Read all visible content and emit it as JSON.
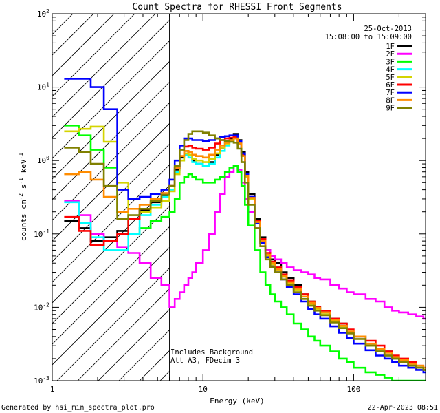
{
  "chart_data": {
    "type": "line",
    "title": "Count Spectra for RHESSI Front Segments",
    "xlabel": "Energy (keV)",
    "ylabel": "counts cm-2 s-1 keV-1",
    "ylabel_parts": [
      "counts cm",
      "-2",
      " s",
      "-1",
      " keV",
      "-1"
    ],
    "xscale": "log",
    "yscale": "log",
    "xlim": [
      1,
      300
    ],
    "ylim": [
      0.001,
      100
    ],
    "x_ticks": [
      {
        "value": 1,
        "label": "1"
      },
      {
        "value": 10,
        "label": "10"
      },
      {
        "value": 100,
        "label": "100"
      }
    ],
    "y_ticks": [
      {
        "value": 100,
        "base": "10",
        "exp": "2"
      },
      {
        "value": 10,
        "base": "10",
        "exp": "1"
      },
      {
        "value": 1,
        "base": "10",
        "exp": "0"
      },
      {
        "value": 0.1,
        "base": "10",
        "exp": "-1"
      },
      {
        "value": 0.01,
        "base": "10",
        "exp": "-2"
      },
      {
        "value": 0.001,
        "base": "10",
        "exp": "-3"
      }
    ],
    "date": "25-Oct-2013",
    "time_range": "15:08:00 to 15:09:00",
    "hatched_region_upper_energy": 6,
    "annotations": [
      "Includes Background",
      "Att A3, FDecim 3"
    ],
    "footer_left": "Generated by hsi_min_spectra_plot.pro",
    "footer_right": "22-Apr-2023 08:51",
    "series": [
      {
        "name": "1F",
        "color": "#000000",
        "x": [
          1.2,
          1.5,
          1.8,
          2.2,
          2.7,
          3.2,
          3.8,
          4.5,
          5.3,
          6.0,
          6.5,
          7.0,
          7.5,
          8.0,
          8.5,
          9.0,
          10.0,
          11.0,
          12.0,
          13.0,
          14.0,
          15.0,
          16.0,
          17.0,
          18.0,
          19.0,
          20.0,
          22.0,
          24.0,
          26.0,
          28.0,
          30.0,
          33.0,
          36.0,
          40.0,
          45.0,
          50.0,
          55.0,
          60.0,
          70.0,
          80.0,
          90.0,
          100.0,
          120.0,
          140.0,
          160.0,
          180.0,
          200.0,
          230.0,
          260.0,
          290.0
        ],
        "y": [
          0.15,
          0.12,
          0.08,
          0.09,
          0.11,
          0.16,
          0.21,
          0.27,
          0.33,
          0.45,
          0.75,
          1.1,
          1.35,
          1.2,
          1.0,
          0.9,
          0.85,
          0.95,
          1.2,
          1.5,
          1.8,
          2.0,
          2.3,
          1.9,
          1.3,
          0.7,
          0.35,
          0.16,
          0.09,
          0.06,
          0.045,
          0.04,
          0.03,
          0.025,
          0.02,
          0.015,
          0.012,
          0.01,
          0.009,
          0.007,
          0.006,
          0.0045,
          0.004,
          0.003,
          0.0025,
          0.0025,
          0.002,
          0.0018,
          0.0016,
          0.0015,
          0.0014
        ]
      },
      {
        "name": "2F",
        "color": "#ff00ff",
        "x": [
          1.2,
          1.5,
          1.8,
          2.2,
          2.7,
          3.2,
          3.8,
          4.5,
          5.3,
          6.0,
          6.5,
          7.0,
          7.5,
          8.0,
          8.5,
          9.0,
          10.0,
          11.0,
          12.0,
          13.0,
          14.0,
          15.0,
          16.0,
          17.0,
          18.0,
          19.0,
          20.0,
          22.0,
          24.0,
          26.0,
          28.0,
          30.0,
          33.0,
          36.0,
          40.0,
          45.0,
          50.0,
          55.0,
          60.0,
          70.0,
          80.0,
          90.0,
          100.0,
          120.0,
          140.0,
          160.0,
          180.0,
          200.0,
          230.0,
          260.0,
          290.0
        ],
        "y": [
          0.28,
          0.18,
          0.1,
          0.08,
          0.065,
          0.055,
          0.04,
          0.025,
          0.02,
          0.01,
          0.013,
          0.016,
          0.02,
          0.025,
          0.03,
          0.04,
          0.06,
          0.1,
          0.2,
          0.35,
          0.6,
          0.7,
          0.85,
          0.75,
          0.5,
          0.3,
          0.2,
          0.12,
          0.08,
          0.06,
          0.05,
          0.045,
          0.04,
          0.035,
          0.032,
          0.03,
          0.028,
          0.025,
          0.024,
          0.02,
          0.018,
          0.016,
          0.015,
          0.013,
          0.012,
          0.01,
          0.009,
          0.0085,
          0.008,
          0.0075,
          0.007
        ]
      },
      {
        "name": "3F",
        "color": "#00ff00",
        "x": [
          1.2,
          1.5,
          1.8,
          2.2,
          2.7,
          3.2,
          3.8,
          4.5,
          5.3,
          6.0,
          6.5,
          7.0,
          7.5,
          8.0,
          8.5,
          9.0,
          10.0,
          11.0,
          12.0,
          13.0,
          14.0,
          15.0,
          16.0,
          17.0,
          18.0,
          19.0,
          20.0,
          22.0,
          24.0,
          26.0,
          28.0,
          30.0,
          33.0,
          36.0,
          40.0,
          45.0,
          50.0,
          55.0,
          60.0,
          70.0,
          80.0,
          90.0,
          100.0,
          120.0,
          140.0,
          160.0,
          180.0,
          200.0,
          230.0,
          260.0,
          290.0
        ],
        "y": [
          3.0,
          2.2,
          1.4,
          0.8,
          0.2,
          0.1,
          0.12,
          0.15,
          0.17,
          0.2,
          0.3,
          0.5,
          0.6,
          0.65,
          0.6,
          0.55,
          0.5,
          0.5,
          0.55,
          0.6,
          0.7,
          0.8,
          0.85,
          0.7,
          0.45,
          0.25,
          0.13,
          0.06,
          0.03,
          0.02,
          0.015,
          0.012,
          0.01,
          0.008,
          0.006,
          0.005,
          0.004,
          0.0035,
          0.003,
          0.0025,
          0.002,
          0.0018,
          0.0015,
          0.0013,
          0.0012,
          0.0011,
          0.001,
          0.001,
          0.001,
          0.001,
          0.001
        ]
      },
      {
        "name": "4F",
        "color": "#00ffff",
        "x": [
          1.2,
          1.5,
          1.8,
          2.2,
          2.7,
          3.2,
          3.8,
          4.5,
          5.3,
          6.0,
          6.5,
          7.0,
          7.5,
          8.0,
          8.5,
          9.0,
          10.0,
          11.0,
          12.0,
          13.0,
          14.0,
          15.0,
          16.0,
          17.0,
          18.0,
          19.0,
          20.0,
          22.0,
          24.0,
          26.0,
          28.0,
          30.0,
          33.0,
          36.0,
          40.0,
          45.0,
          50.0,
          55.0,
          60.0,
          70.0,
          80.0,
          90.0,
          100.0,
          120.0,
          140.0,
          160.0,
          180.0,
          200.0,
          230.0,
          260.0,
          290.0
        ],
        "y": [
          0.27,
          0.14,
          0.09,
          0.06,
          0.06,
          0.1,
          0.18,
          0.25,
          0.32,
          0.4,
          0.7,
          1.0,
          1.2,
          1.1,
          0.95,
          0.9,
          0.85,
          0.9,
          1.1,
          1.35,
          1.6,
          1.8,
          2.0,
          1.75,
          1.2,
          0.65,
          0.32,
          0.15,
          0.08,
          0.05,
          0.04,
          0.035,
          0.028,
          0.022,
          0.018,
          0.014,
          0.011,
          0.0095,
          0.0085,
          0.0065,
          0.0055,
          0.0045,
          0.004,
          0.003,
          0.0025,
          0.0022,
          0.002,
          0.0018,
          0.0016,
          0.0015,
          0.0014
        ]
      },
      {
        "name": "5F",
        "color": "#d4d400",
        "x": [
          1.2,
          1.5,
          1.8,
          2.2,
          2.7,
          3.2,
          3.8,
          4.5,
          5.3,
          6.0,
          6.5,
          7.0,
          7.5,
          8.0,
          8.5,
          9.0,
          10.0,
          11.0,
          12.0,
          13.0,
          14.0,
          15.0,
          16.0,
          17.0,
          18.0,
          19.0,
          20.0,
          22.0,
          24.0,
          26.0,
          28.0,
          30.0,
          33.0,
          36.0,
          40.0,
          45.0,
          50.0,
          55.0,
          60.0,
          70.0,
          80.0,
          90.0,
          100.0,
          120.0,
          140.0,
          160.0,
          180.0,
          200.0,
          230.0,
          260.0,
          290.0
        ],
        "y": [
          2.5,
          2.7,
          2.9,
          1.8,
          0.5,
          0.16,
          0.2,
          0.23,
          0.28,
          0.38,
          0.65,
          1.0,
          1.25,
          1.2,
          1.05,
          1.0,
          0.95,
          1.05,
          1.25,
          1.5,
          1.7,
          1.85,
          2.0,
          1.7,
          1.15,
          0.6,
          0.3,
          0.14,
          0.075,
          0.05,
          0.038,
          0.032,
          0.026,
          0.021,
          0.017,
          0.013,
          0.011,
          0.0095,
          0.008,
          0.0065,
          0.0055,
          0.0045,
          0.004,
          0.003,
          0.0025,
          0.0022,
          0.002,
          0.0018,
          0.0016,
          0.0015,
          0.0014
        ]
      },
      {
        "name": "6F",
        "color": "#ff0000",
        "x": [
          1.2,
          1.5,
          1.8,
          2.2,
          2.7,
          3.2,
          3.8,
          4.5,
          5.3,
          6.0,
          6.5,
          7.0,
          7.5,
          8.0,
          8.5,
          9.0,
          10.0,
          11.0,
          12.0,
          13.0,
          14.0,
          15.0,
          16.0,
          17.0,
          18.0,
          19.0,
          20.0,
          22.0,
          24.0,
          26.0,
          28.0,
          30.0,
          33.0,
          36.0,
          40.0,
          45.0,
          50.0,
          55.0,
          60.0,
          70.0,
          80.0,
          90.0,
          100.0,
          120.0,
          140.0,
          160.0,
          180.0,
          200.0,
          230.0,
          260.0,
          290.0
        ],
        "y": [
          0.17,
          0.11,
          0.07,
          0.08,
          0.1,
          0.16,
          0.22,
          0.28,
          0.34,
          0.45,
          0.8,
          1.15,
          1.55,
          1.6,
          1.5,
          1.45,
          1.4,
          1.5,
          1.7,
          1.9,
          2.0,
          2.05,
          2.1,
          1.8,
          1.2,
          0.65,
          0.32,
          0.15,
          0.085,
          0.055,
          0.042,
          0.035,
          0.028,
          0.023,
          0.019,
          0.015,
          0.012,
          0.01,
          0.009,
          0.007,
          0.006,
          0.005,
          0.004,
          0.0035,
          0.003,
          0.0025,
          0.0022,
          0.002,
          0.0018,
          0.0016,
          0.0015
        ]
      },
      {
        "name": "7F",
        "color": "#0000ff",
        "x": [
          1.2,
          1.5,
          1.8,
          2.2,
          2.7,
          3.2,
          3.8,
          4.5,
          5.3,
          6.0,
          6.5,
          7.0,
          7.5,
          8.0,
          8.5,
          9.0,
          10.0,
          11.0,
          12.0,
          13.0,
          14.0,
          15.0,
          16.0,
          17.0,
          18.0,
          19.0,
          20.0,
          22.0,
          24.0,
          26.0,
          28.0,
          30.0,
          33.0,
          36.0,
          40.0,
          45.0,
          50.0,
          55.0,
          60.0,
          70.0,
          80.0,
          90.0,
          100.0,
          120.0,
          140.0,
          160.0,
          180.0,
          200.0,
          230.0,
          260.0,
          290.0
        ],
        "y": [
          13,
          13,
          10,
          5.0,
          0.4,
          0.3,
          0.32,
          0.35,
          0.4,
          0.55,
          1.0,
          1.6,
          2.0,
          2.0,
          1.9,
          1.9,
          1.85,
          1.9,
          2.0,
          2.1,
          2.15,
          2.2,
          2.2,
          1.85,
          1.25,
          0.65,
          0.32,
          0.14,
          0.075,
          0.048,
          0.036,
          0.03,
          0.024,
          0.019,
          0.015,
          0.012,
          0.0095,
          0.008,
          0.007,
          0.0055,
          0.0045,
          0.0038,
          0.0032,
          0.0026,
          0.0022,
          0.002,
          0.0018,
          0.0016,
          0.0015,
          0.0014,
          0.0013
        ]
      },
      {
        "name": "8F",
        "color": "#ff8c00",
        "x": [
          1.2,
          1.5,
          1.8,
          2.2,
          2.7,
          3.2,
          3.8,
          4.5,
          5.3,
          6.0,
          6.5,
          7.0,
          7.5,
          8.0,
          8.5,
          9.0,
          10.0,
          11.0,
          12.0,
          13.0,
          14.0,
          15.0,
          16.0,
          17.0,
          18.0,
          19.0,
          20.0,
          22.0,
          24.0,
          26.0,
          28.0,
          30.0,
          33.0,
          36.0,
          40.0,
          45.0,
          50.0,
          55.0,
          60.0,
          70.0,
          80.0,
          90.0,
          100.0,
          120.0,
          140.0,
          160.0,
          180.0,
          200.0,
          230.0,
          260.0,
          290.0
        ],
        "y": [
          0.65,
          0.7,
          0.55,
          0.32,
          0.2,
          0.22,
          0.25,
          0.3,
          0.36,
          0.45,
          0.8,
          1.15,
          1.35,
          1.3,
          1.2,
          1.15,
          1.1,
          1.2,
          1.4,
          1.6,
          1.75,
          1.9,
          2.0,
          1.7,
          1.15,
          0.62,
          0.31,
          0.145,
          0.08,
          0.052,
          0.04,
          0.033,
          0.027,
          0.022,
          0.018,
          0.014,
          0.0115,
          0.0098,
          0.0085,
          0.0068,
          0.0056,
          0.0047,
          0.004,
          0.0032,
          0.0027,
          0.0024,
          0.0021,
          0.0019,
          0.0017,
          0.0016,
          0.0015
        ]
      },
      {
        "name": "9F",
        "color": "#808000",
        "x": [
          1.2,
          1.5,
          1.8,
          2.2,
          2.7,
          3.2,
          3.8,
          4.5,
          5.3,
          6.0,
          6.5,
          7.0,
          7.5,
          8.0,
          8.5,
          9.0,
          10.0,
          11.0,
          12.0,
          13.0,
          14.0,
          15.0,
          16.0,
          17.0,
          18.0,
          19.0,
          20.0,
          22.0,
          24.0,
          26.0,
          28.0,
          30.0,
          33.0,
          36.0,
          40.0,
          45.0,
          50.0,
          55.0,
          60.0,
          70.0,
          80.0,
          90.0,
          100.0,
          120.0,
          140.0,
          160.0,
          180.0,
          200.0,
          230.0,
          260.0,
          290.0
        ],
        "y": [
          1.5,
          1.3,
          0.9,
          0.45,
          0.16,
          0.18,
          0.22,
          0.28,
          0.34,
          0.45,
          0.85,
          1.4,
          1.9,
          2.3,
          2.5,
          2.5,
          2.4,
          2.2,
          2.0,
          1.9,
          1.85,
          1.8,
          1.75,
          1.45,
          0.95,
          0.5,
          0.25,
          0.12,
          0.068,
          0.045,
          0.035,
          0.03,
          0.024,
          0.02,
          0.016,
          0.013,
          0.0105,
          0.009,
          0.0078,
          0.0062,
          0.0052,
          0.0044,
          0.0037,
          0.003,
          0.0025,
          0.0022,
          0.002,
          0.0018,
          0.0016,
          0.0015,
          0.0014
        ]
      }
    ]
  }
}
